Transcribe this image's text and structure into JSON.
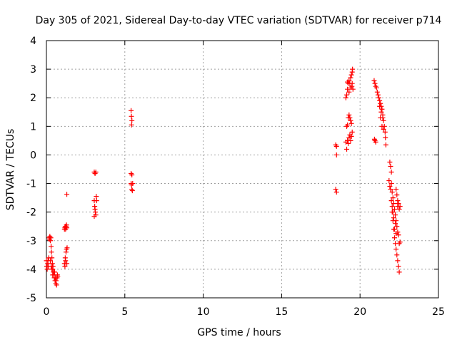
{
  "chart_data": {
    "type": "scatter",
    "title": "Day 305 of 2021, Sidereal Day-to-day VTEC variation (SDTVAR) for receiver p714",
    "xlabel": "GPS time / hours",
    "ylabel": "SDTVAR / TECUs",
    "xlim": [
      0,
      25
    ],
    "ylim": [
      -5,
      4
    ],
    "xticks": [
      0,
      5,
      10,
      15,
      20,
      25
    ],
    "yticks": [
      -5,
      -4,
      -3,
      -2,
      -1,
      0,
      1,
      2,
      3,
      4
    ],
    "grid": true,
    "legend": "none",
    "marker": "plus",
    "series": [
      {
        "name": "SDTVAR p714",
        "color": "#ff0000",
        "points": [
          [
            0.0,
            -3.7
          ],
          [
            0.02,
            -3.9
          ],
          [
            0.05,
            -4.0
          ],
          [
            0.08,
            -3.8
          ],
          [
            0.1,
            -3.7
          ],
          [
            0.12,
            -3.9
          ],
          [
            0.15,
            -3.6
          ],
          [
            0.18,
            -2.9
          ],
          [
            0.2,
            -2.95
          ],
          [
            0.22,
            -2.85
          ],
          [
            0.25,
            -3.0
          ],
          [
            0.28,
            -2.9
          ],
          [
            0.3,
            -3.2
          ],
          [
            0.32,
            -3.4
          ],
          [
            0.35,
            -3.6
          ],
          [
            0.38,
            -3.8
          ],
          [
            0.4,
            -4.0
          ],
          [
            0.42,
            -3.9
          ],
          [
            0.45,
            -4.1
          ],
          [
            0.48,
            -4.2
          ],
          [
            0.5,
            -4.3
          ],
          [
            0.52,
            -4.1
          ],
          [
            0.55,
            -4.4
          ],
          [
            0.58,
            -4.3
          ],
          [
            0.6,
            -4.5
          ],
          [
            0.62,
            -4.4
          ],
          [
            0.65,
            -4.55
          ],
          [
            0.68,
            -4.3
          ],
          [
            0.7,
            -4.2
          ],
          [
            0.72,
            -4.25
          ],
          [
            0.25,
            -3.7
          ],
          [
            0.3,
            -3.9
          ],
          [
            0.35,
            -4.0
          ],
          [
            0.4,
            -4.2
          ],
          [
            1.15,
            -2.6
          ],
          [
            1.18,
            -2.55
          ],
          [
            1.2,
            -2.5
          ],
          [
            1.22,
            -2.6
          ],
          [
            1.25,
            -2.5
          ],
          [
            1.28,
            -2.45
          ],
          [
            1.3,
            -2.55
          ],
          [
            1.15,
            -3.8
          ],
          [
            1.18,
            -3.9
          ],
          [
            1.2,
            -3.6
          ],
          [
            1.22,
            -3.7
          ],
          [
            1.25,
            -3.4
          ],
          [
            1.28,
            -3.3
          ],
          [
            1.3,
            -3.8
          ],
          [
            1.32,
            -3.25
          ],
          [
            1.3,
            -1.38
          ],
          [
            3.05,
            -0.6
          ],
          [
            3.1,
            -0.65
          ],
          [
            3.15,
            -0.6
          ],
          [
            3.05,
            -1.6
          ],
          [
            3.08,
            -1.8
          ],
          [
            3.1,
            -1.9
          ],
          [
            3.12,
            -2.0
          ],
          [
            3.15,
            -2.1
          ],
          [
            3.18,
            -1.45
          ],
          [
            3.2,
            -1.6
          ],
          [
            3.05,
            -2.15
          ],
          [
            5.4,
            1.55
          ],
          [
            5.42,
            1.35
          ],
          [
            5.45,
            1.2
          ],
          [
            5.43,
            1.05
          ],
          [
            5.4,
            -0.65
          ],
          [
            5.45,
            -0.7
          ],
          [
            5.4,
            -1.0
          ],
          [
            5.42,
            -1.05
          ],
          [
            5.45,
            -1.2
          ],
          [
            5.48,
            -1.25
          ],
          [
            5.5,
            -1.0
          ],
          [
            18.45,
            0.35
          ],
          [
            18.5,
            0.3
          ],
          [
            18.5,
            0.0
          ],
          [
            18.45,
            -1.2
          ],
          [
            18.5,
            -1.3
          ],
          [
            19.1,
            0.45
          ],
          [
            19.15,
            0.2
          ],
          [
            19.2,
            0.5
          ],
          [
            19.25,
            0.4
          ],
          [
            19.3,
            0.6
          ],
          [
            19.35,
            0.7
          ],
          [
            19.4,
            0.5
          ],
          [
            19.45,
            0.65
          ],
          [
            19.15,
            1.0
          ],
          [
            19.2,
            1.05
          ],
          [
            19.25,
            1.3
          ],
          [
            19.3,
            1.4
          ],
          [
            19.35,
            1.3
          ],
          [
            19.4,
            1.2
          ],
          [
            19.45,
            1.1
          ],
          [
            19.5,
            0.8
          ],
          [
            19.1,
            2.0
          ],
          [
            19.15,
            2.1
          ],
          [
            19.2,
            2.3
          ],
          [
            19.25,
            2.5
          ],
          [
            19.3,
            2.6
          ],
          [
            19.35,
            2.5
          ],
          [
            19.4,
            2.7
          ],
          [
            19.45,
            2.8
          ],
          [
            19.5,
            2.9
          ],
          [
            19.52,
            3.0
          ],
          [
            19.48,
            2.4
          ],
          [
            19.55,
            2.3
          ],
          [
            19.2,
            2.55
          ],
          [
            19.3,
            2.2
          ],
          [
            19.4,
            2.35
          ],
          [
            19.5,
            2.5
          ],
          [
            20.9,
            2.6
          ],
          [
            20.95,
            2.5
          ],
          [
            21.0,
            2.4
          ],
          [
            21.05,
            2.35
          ],
          [
            21.1,
            2.2
          ],
          [
            21.15,
            2.1
          ],
          [
            21.2,
            2.0
          ],
          [
            21.25,
            1.9
          ],
          [
            21.3,
            1.8
          ],
          [
            21.35,
            1.7
          ],
          [
            21.4,
            1.6
          ],
          [
            21.45,
            1.4
          ],
          [
            21.5,
            1.2
          ],
          [
            21.55,
            1.0
          ],
          [
            21.6,
            0.8
          ],
          [
            21.62,
            0.6
          ],
          [
            21.65,
            0.35
          ],
          [
            21.4,
            1.0
          ],
          [
            21.45,
            1.3
          ],
          [
            21.5,
            0.9
          ],
          [
            21.35,
            1.5
          ],
          [
            21.25,
            1.7
          ],
          [
            21.3,
            1.3
          ],
          [
            20.95,
            0.5
          ],
          [
            21.0,
            0.45
          ],
          [
            20.92,
            0.55
          ],
          [
            21.9,
            -0.25
          ],
          [
            21.95,
            -0.4
          ],
          [
            22.0,
            -0.6
          ],
          [
            21.85,
            -0.9
          ],
          [
            21.9,
            -1.1
          ],
          [
            21.95,
            -1.2
          ],
          [
            22.0,
            -1.0
          ],
          [
            22.05,
            -1.3
          ],
          [
            22.1,
            -1.5
          ],
          [
            22.15,
            -1.7
          ],
          [
            22.2,
            -1.9
          ],
          [
            22.25,
            -2.1
          ],
          [
            22.3,
            -2.3
          ],
          [
            22.35,
            -2.5
          ],
          [
            22.4,
            -1.8
          ],
          [
            22.45,
            -1.7
          ],
          [
            22.5,
            -1.9
          ],
          [
            22.55,
            -1.8
          ],
          [
            22.35,
            -1.4
          ],
          [
            22.4,
            -1.6
          ],
          [
            22.3,
            -1.2
          ],
          [
            22.05,
            -2.0
          ],
          [
            22.1,
            -2.3
          ],
          [
            22.15,
            -2.6
          ],
          [
            22.2,
            -2.9
          ],
          [
            22.25,
            -3.1
          ],
          [
            22.3,
            -3.3
          ],
          [
            22.35,
            -3.5
          ],
          [
            22.4,
            -3.7
          ],
          [
            22.45,
            -3.9
          ],
          [
            22.5,
            -4.1
          ],
          [
            22.55,
            -3.05
          ],
          [
            22.5,
            -3.1
          ],
          [
            22.45,
            -2.8
          ],
          [
            22.4,
            -2.7
          ],
          [
            22.0,
            -1.6
          ],
          [
            22.05,
            -1.8
          ],
          [
            22.1,
            -2.0
          ],
          [
            22.15,
            -2.2
          ],
          [
            22.2,
            -2.6
          ],
          [
            22.25,
            -2.4
          ],
          [
            22.3,
            -2.75
          ]
        ]
      }
    ]
  }
}
